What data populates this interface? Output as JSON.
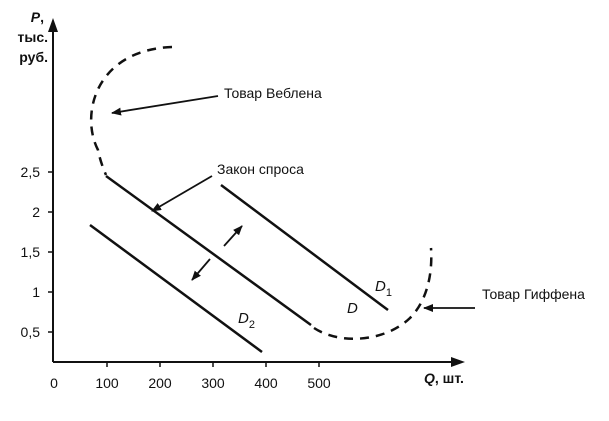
{
  "y_axis": {
    "var": "P",
    "comma": ",",
    "unit_line1": "тыс.",
    "unit_line2": "руб."
  },
  "x_axis": {
    "var": "Q",
    "unit": ", шт."
  },
  "y_ticks": [
    "2,5",
    "2",
    "1,5",
    "1",
    "0,5"
  ],
  "x_ticks": [
    "0",
    "100",
    "200",
    "300",
    "400",
    "500"
  ],
  "annotations": {
    "veblen": "Товар Веблена",
    "demand_law": "Закон спроса",
    "giffen": "Товар Гиффена"
  },
  "curve_labels": {
    "d1_main": "D",
    "d1_sub": "1",
    "d": "D",
    "d2_main": "D",
    "d2_sub": "2"
  }
}
